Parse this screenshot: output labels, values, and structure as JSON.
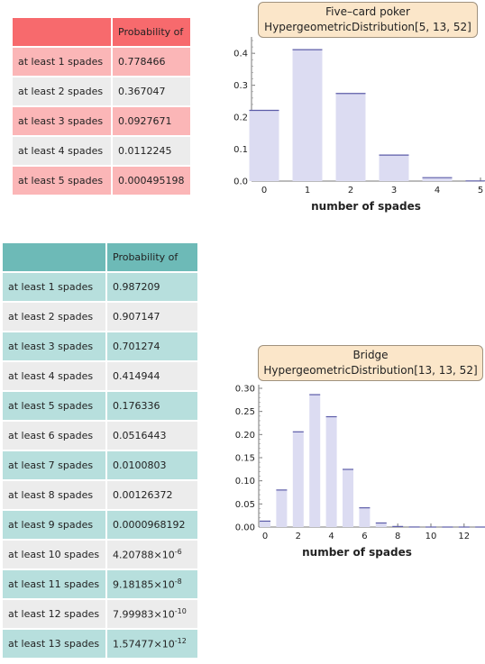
{
  "colors": {
    "poker_header": "#f76a6d",
    "poker_odd": "#fbb6b7",
    "bridge_header": "#6dbab7",
    "bridge_odd": "#b7dfdd",
    "row_even": "#ececec",
    "bar_fill": "#dcdcf2",
    "bar_top": "#5c5ca8",
    "title_box": "#fbe6c9"
  },
  "poker_table": {
    "header": "Probability of",
    "rows": [
      {
        "label": "at least 1 spades",
        "value": "0.778466"
      },
      {
        "label": "at least 2 spades",
        "value": "0.367047"
      },
      {
        "label": "at least 3 spades",
        "value": "0.0927671"
      },
      {
        "label": "at least 4 spades",
        "value": "0.0112245"
      },
      {
        "label": "at least 5 spades",
        "value": "0.000495198"
      }
    ]
  },
  "bridge_table": {
    "header": "Probability of",
    "rows": [
      {
        "label": "at least 1 spades",
        "value": "0.987209"
      },
      {
        "label": "at least 2 spades",
        "value": "0.907147"
      },
      {
        "label": "at least 3 spades",
        "value": "0.701274"
      },
      {
        "label": "at least 4 spades",
        "value": "0.414944"
      },
      {
        "label": "at least 5 spades",
        "value": "0.176336"
      },
      {
        "label": "at least 6 spades",
        "value": "0.0516443"
      },
      {
        "label": "at least 7 spades",
        "value": "0.0100803"
      },
      {
        "label": "at least 8 spades",
        "value": "0.00126372"
      },
      {
        "label": "at least 9 spades",
        "value": "0.0000968192"
      },
      {
        "label": "at least 10 spades",
        "value": "4.20788",
        "exp": "-6"
      },
      {
        "label": "at least 11 spades",
        "value": "9.18185",
        "exp": "-8"
      },
      {
        "label": "at least 12 spades",
        "value": "7.99983",
        "exp": "-10"
      },
      {
        "label": "at least 13 spades",
        "value": "1.57477",
        "exp": "-12"
      }
    ]
  },
  "chart_data": [
    {
      "type": "bar",
      "title": "Five–card poker",
      "subtitle": "HypergeometricDistribution[5, 13, 52]",
      "xlabel": "number of spades",
      "ylabel": "",
      "categories": [
        0,
        1,
        2,
        3,
        4,
        5
      ],
      "values": [
        0.2215,
        0.4114,
        0.2743,
        0.0815,
        0.0107,
        0.0005
      ],
      "xticks": [
        "0",
        "1",
        "2",
        "3",
        "4",
        "5"
      ],
      "yticks": [
        "0.0",
        "0.1",
        "0.2",
        "0.3",
        "0.4"
      ],
      "ylim": [
        0,
        0.44
      ],
      "grid": false
    },
    {
      "type": "bar",
      "title": "Bridge",
      "subtitle": "HypergeometricDistribution[13, 13, 52]",
      "xlabel": "number of spades",
      "ylabel": "",
      "categories": [
        0,
        1,
        2,
        3,
        4,
        5,
        6,
        7,
        8,
        9,
        10,
        11,
        12,
        13
      ],
      "values": [
        0.0128,
        0.0801,
        0.2059,
        0.2863,
        0.2386,
        0.1247,
        0.0416,
        0.0088,
        0.0012,
        0.0001,
        0.0,
        0.0,
        0.0,
        0.0
      ],
      "xticks": [
        "0",
        "2",
        "4",
        "6",
        "8",
        "10",
        "12"
      ],
      "yticks": [
        "0.00",
        "0.05",
        "0.10",
        "0.15",
        "0.20",
        "0.25",
        "0.30"
      ],
      "ylim": [
        0,
        0.3
      ],
      "grid": false
    }
  ]
}
